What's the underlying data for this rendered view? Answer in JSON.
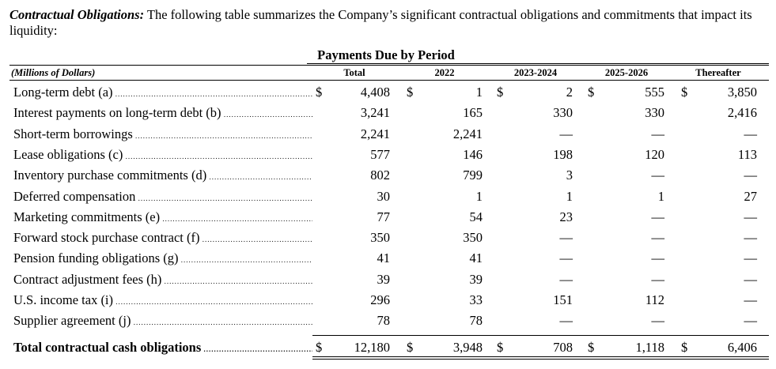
{
  "intro": {
    "lead": "Contractual Obligations:",
    "text": " The following table summarizes the Company’s significant contractual obligations and commitments that impact its liquidity:"
  },
  "table": {
    "period_header": "Payments Due by Period",
    "units": "(Millions of Dollars)",
    "columns": [
      "Total",
      "2022",
      "2023-2024",
      "2025-2026",
      "Thereafter"
    ],
    "currency_symbol": "$",
    "rows": [
      {
        "label": "Long-term debt (a)",
        "values": [
          "4,408",
          "1",
          "2",
          "555",
          "3,850"
        ]
      },
      {
        "label": "Interest payments on long-term debt (b)",
        "values": [
          "3,241",
          "165",
          "330",
          "330",
          "2,416"
        ]
      },
      {
        "label": "Short-term borrowings",
        "values": [
          "2,241",
          "2,241",
          "—",
          "—",
          "—"
        ]
      },
      {
        "label": "Lease obligations (c)",
        "values": [
          "577",
          "146",
          "198",
          "120",
          "113"
        ]
      },
      {
        "label": "Inventory purchase commitments (d)",
        "values": [
          "802",
          "799",
          "3",
          "—",
          "—"
        ]
      },
      {
        "label": "Deferred compensation",
        "values": [
          "30",
          "1",
          "1",
          "1",
          "27"
        ]
      },
      {
        "label": "Marketing commitments (e)",
        "values": [
          "77",
          "54",
          "23",
          "—",
          "—"
        ]
      },
      {
        "label": "Forward stock purchase contract (f)",
        "values": [
          "350",
          "350",
          "—",
          "—",
          "—"
        ]
      },
      {
        "label": "Pension funding obligations (g)",
        "values": [
          "41",
          "41",
          "—",
          "—",
          "—"
        ]
      },
      {
        "label": "Contract adjustment fees (h)",
        "values": [
          "39",
          "39",
          "—",
          "—",
          "—"
        ]
      },
      {
        "label": "U.S. income tax (i)",
        "values": [
          "296",
          "33",
          "151",
          "112",
          "—"
        ]
      },
      {
        "label": "Supplier agreement (j)",
        "values": [
          "78",
          "78",
          "—",
          "—",
          "—"
        ]
      }
    ],
    "total_row": {
      "label": "Total contractual cash obligations",
      "values": [
        "12,180",
        "3,948",
        "708",
        "1,118",
        "6,406"
      ]
    }
  }
}
